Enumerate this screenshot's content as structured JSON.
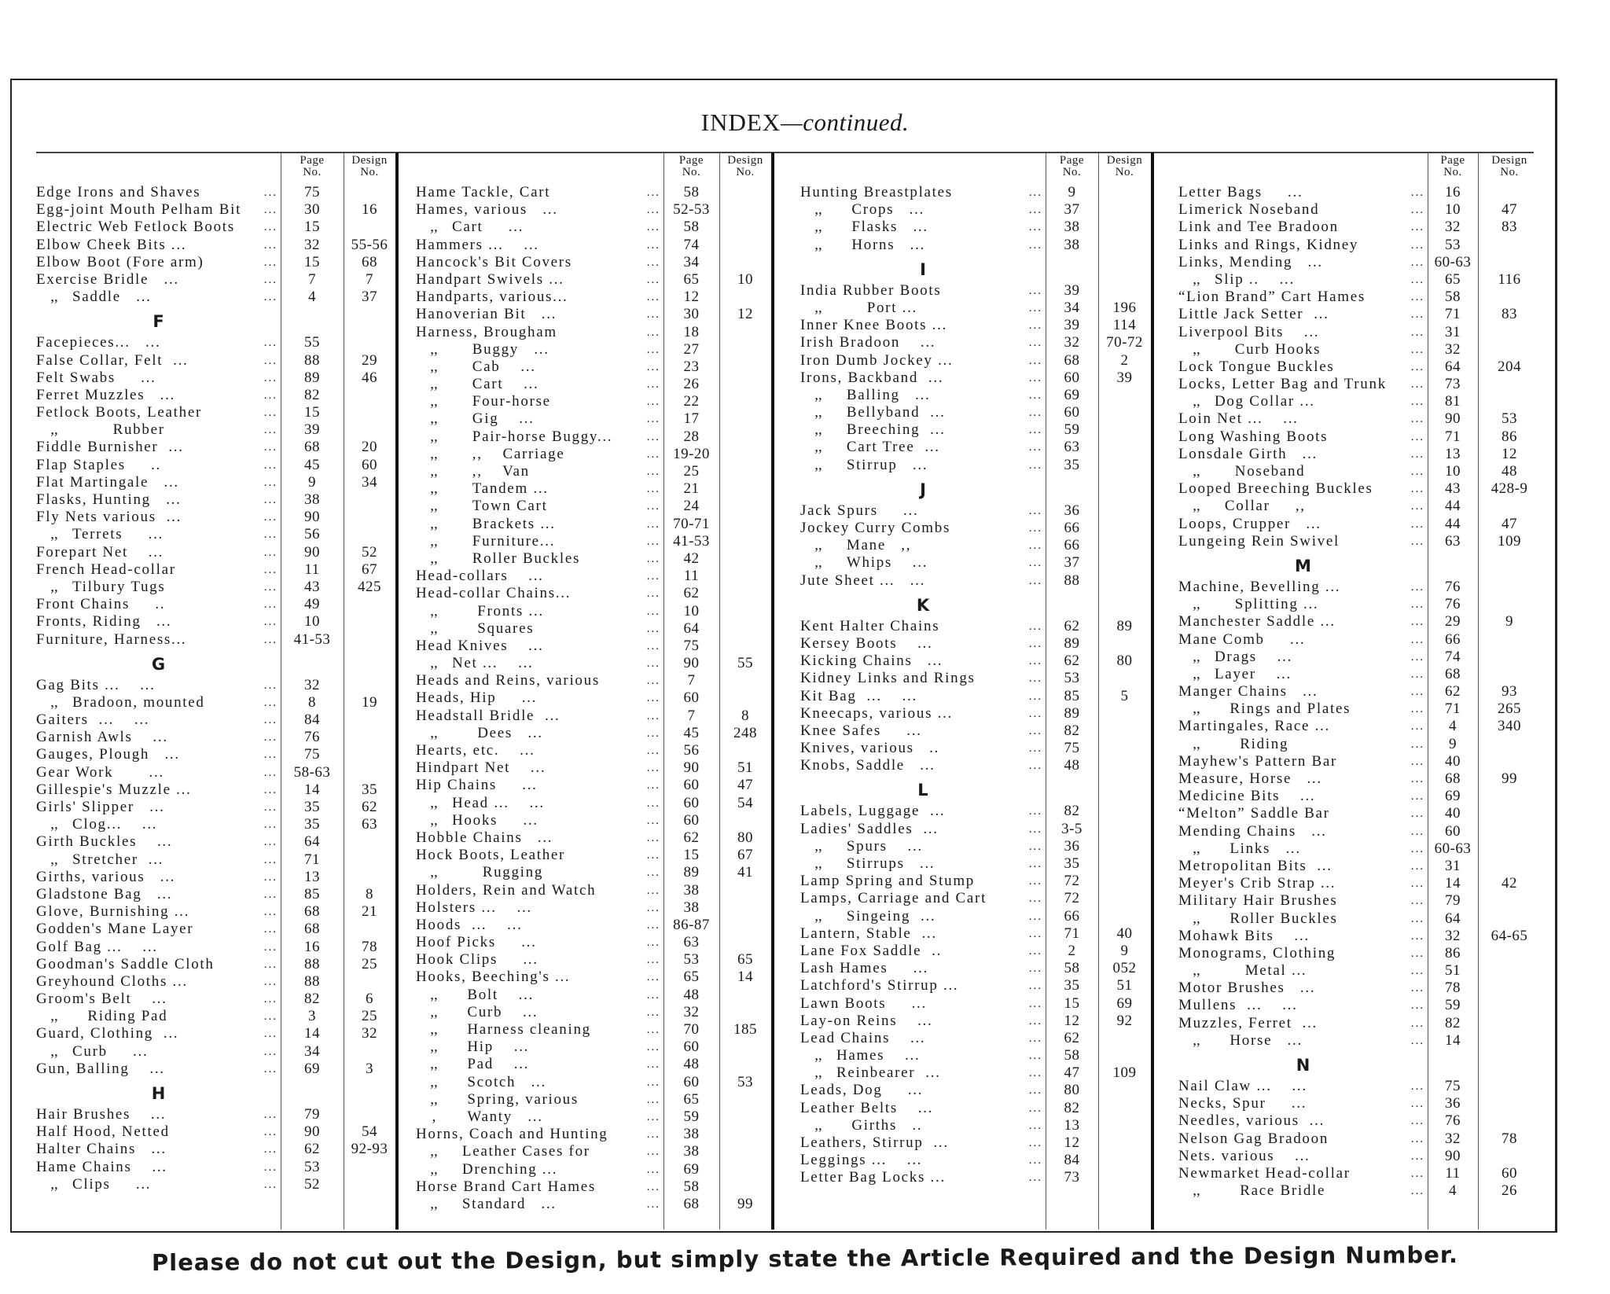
{
  "title": {
    "main": "INDEX",
    "suffix": "—continued."
  },
  "column_headers": {
    "page": "Page No.",
    "design": "Design No."
  },
  "footer": "Please do not cut out the Design, but simply state the Article Required and the Design Number.",
  "columns": [
    [
      [
        "Edge Irons and Shaves",
        "75",
        ""
      ],
      [
        "Egg-joint Mouth Pelham Bit",
        "30",
        "16"
      ],
      [
        "Electric Web Fetlock Boots",
        "15",
        ""
      ],
      [
        "Elbow Cheek Bits ...",
        "32",
        "55-56"
      ],
      [
        "Elbow Boot (Fore arm)",
        "15",
        "68"
      ],
      [
        "Exercise Bridle   ...",
        "7",
        "7"
      ],
      [
        ",,|Saddle   ...",
        "4",
        "37"
      ],
      "F",
      [
        "Facepieces...   ...",
        "55",
        ""
      ],
      [
        "False Collar, Felt  ...",
        "88",
        "29"
      ],
      [
        "Felt Swabs     ...",
        "89",
        "46"
      ],
      [
        "Ferret Muzzles   ...",
        "82",
        ""
      ],
      [
        "Fetlock Boots, Leather",
        "15",
        ""
      ],
      [
        ",,|        Rubber",
        "39",
        ""
      ],
      [
        "Fiddle Burnisher  ...",
        "68",
        "20"
      ],
      [
        "Flap Staples     ..",
        "45",
        "60"
      ],
      [
        "Flat Martingale   ...",
        "9",
        "34"
      ],
      [
        "Flasks, Hunting   ...",
        "38",
        ""
      ],
      [
        "Fly Nets various  ...",
        "90",
        ""
      ],
      [
        ",,|Terrets     ...",
        "56",
        ""
      ],
      [
        "Forepart Net    ...",
        "90",
        "52"
      ],
      [
        "French Head-collar",
        "11",
        "67"
      ],
      [
        ",,|Tilbury Tugs",
        "43",
        "425"
      ],
      [
        "Front Chains     ..",
        "49",
        ""
      ],
      [
        "Fronts, Riding   ...",
        "10",
        ""
      ],
      [
        "Furniture, Harness...",
        "41-53",
        ""
      ],
      "G",
      [
        "Gag Bits ...    ...",
        "32",
        ""
      ],
      [
        ",,|Bradoon, mounted",
        "8",
        "19"
      ],
      [
        "Gaiters  ...    ...",
        "84",
        ""
      ],
      [
        "Garnish Awls    ...",
        "76",
        ""
      ],
      [
        "Gauges, Plough   ...",
        "75",
        ""
      ],
      [
        "Gear Work       ...",
        "58-63",
        ""
      ],
      [
        "Gillespie's Muzzle ...",
        "14",
        "35"
      ],
      [
        "Girls' Slipper   ...",
        "35",
        "62"
      ],
      [
        ",,|Clog...    ...",
        "35",
        "63"
      ],
      [
        "Girth Buckles    ...",
        "64",
        ""
      ],
      [
        ",,|Stretcher  ...",
        "71",
        ""
      ],
      [
        "Girths, various   ...",
        "13",
        ""
      ],
      [
        "Gladstone Bag   ...",
        "85",
        "8"
      ],
      [
        "Glove, Burnishing ...",
        "68",
        "21"
      ],
      [
        "Godden's Mane Layer",
        "68",
        ""
      ],
      [
        "Golf Bag ...    ...",
        "16",
        "78"
      ],
      [
        "Goodman's Saddle Cloth",
        "88",
        "25"
      ],
      [
        "Greyhound Cloths ...",
        "88",
        ""
      ],
      [
        "Groom's Belt    ...",
        "82",
        "6"
      ],
      [
        ",,|   Riding Pad",
        "3",
        "25"
      ],
      [
        "Guard, Clothing  ...",
        "14",
        "32"
      ],
      [
        ",,|Curb     ...",
        "34",
        ""
      ],
      [
        "Gun, Balling    ...",
        "69",
        "3"
      ],
      "H",
      [
        "Hair Brushes    ...",
        "79",
        ""
      ],
      [
        "Half Hood, Netted",
        "90",
        "54"
      ],
      [
        "Halter Chains   ...",
        "62",
        "92-93"
      ],
      [
        "Hame Chains    ...",
        "53",
        ""
      ],
      [
        ",,|Clips     ...",
        "52",
        ""
      ]
    ],
    [
      [
        "Hame Tackle, Cart",
        "58",
        ""
      ],
      [
        "Hames, various   ...",
        "52-53",
        ""
      ],
      [
        ",,|Cart     ...",
        "58",
        ""
      ],
      [
        "Hammers ...    ...",
        "74",
        ""
      ],
      [
        "Hancock's Bit Covers",
        "34",
        ""
      ],
      [
        "Handpart Swivels ...",
        "65",
        "10"
      ],
      [
        "Handparts, various...",
        "12",
        ""
      ],
      [
        "Hanoverian Bit   ...",
        "30",
        "12"
      ],
      [
        "Harness, Brougham",
        "18",
        ""
      ],
      [
        ",,|    Buggy   ...",
        "27",
        ""
      ],
      [
        ",,|    Cab    ...",
        "23",
        ""
      ],
      [
        ",,|    Cart    ...",
        "26",
        ""
      ],
      [
        ",,|    Four-horse",
        "22",
        ""
      ],
      [
        ",,|    Gig    ...",
        "17",
        ""
      ],
      [
        ",,|    Pair-horse Buggy...",
        "28",
        ""
      ],
      [
        ",,|    ,,    Carriage",
        "19-20",
        ""
      ],
      [
        ",,|    ,,    Van",
        "25",
        ""
      ],
      [
        ",,|    Tandem ...",
        "21",
        ""
      ],
      [
        ",,|    Town Cart",
        "24",
        ""
      ],
      [
        ",,|    Brackets ...",
        "70-71",
        ""
      ],
      [
        ",,|    Furniture...",
        "41-53",
        ""
      ],
      [
        ",,|    Roller Buckles",
        "42",
        ""
      ],
      [
        "Head-collars    ...",
        "11",
        ""
      ],
      [
        "Head-collar Chains...",
        "62",
        ""
      ],
      [
        ",,|     Fronts ...",
        "10",
        ""
      ],
      [
        ",,|     Squares",
        "64",
        ""
      ],
      [
        "Head Knives    ...",
        "75",
        ""
      ],
      [
        ",,|Net ...    ...",
        "90",
        "55"
      ],
      [
        "Heads and Reins, various",
        "7",
        ""
      ],
      [
        "Heads, Hip     ...",
        "60",
        ""
      ],
      [
        "Headstall Bridle  ...",
        "7",
        "8"
      ],
      [
        ",,|     Dees   ...",
        "45",
        "248"
      ],
      [
        "Hearts, etc.    ...",
        "56",
        ""
      ],
      [
        "Hindpart Net    ...",
        "90",
        "51"
      ],
      [
        "Hip Chains     ...",
        "60",
        "47"
      ],
      [
        ",,|Head ...    ...",
        "60",
        "54"
      ],
      [
        ",,|Hooks     ...",
        "60",
        ""
      ],
      [
        "Hobble Chains   ...",
        "62",
        "80"
      ],
      [
        "Hock Boots, Leather",
        "15",
        "67"
      ],
      [
        ",,|      Rugging",
        "89",
        "41"
      ],
      [
        "Holders, Rein and Watch",
        "38",
        ""
      ],
      [
        "Holsters ...    ...",
        "38",
        ""
      ],
      [
        "Hoods  ...    ...",
        "86-87",
        ""
      ],
      [
        "Hoof Picks     ...",
        "63",
        ""
      ],
      [
        "Hook Clips     ...",
        "53",
        "65"
      ],
      [
        "Hooks, Beeching's ...",
        "65",
        "14"
      ],
      [
        ",,|   Bolt    ...",
        "48",
        ""
      ],
      [
        ",,|   Curb    ...",
        "32",
        ""
      ],
      [
        ",,|   Harness cleaning",
        "70",
        "185"
      ],
      [
        ",,|   Hip    ...",
        "60",
        ""
      ],
      [
        ",,|   Pad    ...",
        "48",
        ""
      ],
      [
        ",,|   Scotch   ...",
        "60",
        "53"
      ],
      [
        ",,|   Spring, various",
        "65",
        ""
      ],
      [
        ",|   Wanty   ...",
        "59",
        ""
      ],
      [
        "Horns, Coach and Hunting",
        "38",
        ""
      ],
      [
        ",,|  Leather Cases for",
        "38",
        ""
      ],
      [
        ",,|  Drenching ...",
        "69",
        ""
      ],
      [
        "Horse Brand Cart Hames",
        "58",
        ""
      ],
      [
        ",,|  Standard   ...",
        "68",
        "99"
      ]
    ],
    [
      [
        "Hunting Breastplates",
        "9",
        ""
      ],
      [
        ",,|   Crops   ...",
        "37",
        ""
      ],
      [
        ",,|   Flasks   ...",
        "38",
        ""
      ],
      [
        ",,|   Horns   ...",
        "38",
        ""
      ],
      "I",
      [
        "India Rubber Boots",
        "39",
        ""
      ],
      [
        ",,|      Port ...",
        "34",
        "196"
      ],
      [
        "Inner Knee Boots ...",
        "39",
        "114"
      ],
      [
        "Irish Bradoon    ...",
        "32",
        "70-72"
      ],
      [
        "Iron Dumb Jockey ...",
        "68",
        "2"
      ],
      [
        "Irons, Backband  ...",
        "60",
        "39"
      ],
      [
        ",,|  Balling   ...",
        "69",
        ""
      ],
      [
        ",,|  Bellyband  ...",
        "60",
        ""
      ],
      [
        ",,|  Breeching  ...",
        "59",
        ""
      ],
      [
        ",,|  Cart Tree  ...",
        "63",
        ""
      ],
      [
        ",,|  Stirrup   ...",
        "35",
        ""
      ],
      "J",
      [
        "Jack Spurs     ...",
        "36",
        ""
      ],
      [
        "Jockey Curry Combs",
        "66",
        ""
      ],
      [
        ",,|  Mane   ,,",
        "66",
        ""
      ],
      [
        ",,|  Whips    ...",
        "37",
        ""
      ],
      [
        "Jute Sheet ...   ...",
        "88",
        ""
      ],
      "K",
      [
        "Kent Halter Chains",
        "62",
        "89"
      ],
      [
        "Kersey Boots    ...",
        "89",
        ""
      ],
      [
        "Kicking Chains   ...",
        "62",
        "80"
      ],
      [
        "Kidney Links and Rings",
        "53",
        ""
      ],
      [
        "Kit Bag  ...    ...",
        "85",
        "5"
      ],
      [
        "Kneecaps, various ...",
        "89",
        ""
      ],
      [
        "Knee Safes     ...",
        "82",
        ""
      ],
      [
        "Knives, various   ..",
        "75",
        ""
      ],
      [
        "Knobs, Saddle   ...",
        "48",
        ""
      ],
      "L",
      [
        "Labels, Luggage  ...",
        "82",
        ""
      ],
      [
        "Ladies' Saddles  ...",
        "3-5",
        ""
      ],
      [
        ",,|  Spurs    ...",
        "36",
        ""
      ],
      [
        ",,|  Stirrups   ...",
        "35",
        ""
      ],
      [
        "Lamp Spring and Stump",
        "72",
        ""
      ],
      [
        "Lamps, Carriage and Cart",
        "72",
        ""
      ],
      [
        ",,|  Singeing  ...",
        "66",
        ""
      ],
      [
        "Lantern, Stable  ...",
        "71",
        "40"
      ],
      [
        "Lane Fox Saddle  ..",
        "2",
        "9"
      ],
      [
        "Lash Hames     ...",
        "58",
        "052"
      ],
      [
        "Latchford's Stirrup ...",
        "35",
        "51"
      ],
      [
        "Lawn Boots     ...",
        "15",
        "69"
      ],
      [
        "Lay-on Reins    ...",
        "12",
        "92"
      ],
      [
        "Lead Chains    ...",
        "62",
        ""
      ],
      [
        ",,|Hames    ...",
        "58",
        ""
      ],
      [
        ",,|Reinbearer  ...",
        "47",
        "109"
      ],
      [
        "Leads, Dog     ...",
        "80",
        ""
      ],
      [
        "Leather Belts    ...",
        "82",
        ""
      ],
      [
        ",,|   Girths   ..",
        "13",
        ""
      ],
      [
        "Leathers, Stirrup  ...",
        "12",
        ""
      ],
      [
        "Leggings ...    ...",
        "84",
        ""
      ],
      [
        "Letter Bag Locks ...",
        "73",
        ""
      ]
    ],
    [
      [
        "Letter Bags     ...",
        "16",
        ""
      ],
      [
        "Limerick Noseband",
        "10",
        "47"
      ],
      [
        "Link and Tee Bradoon",
        "32",
        "83"
      ],
      [
        "Links and Rings, Kidney",
        "53",
        ""
      ],
      [
        "Links, Mending   ...",
        "60-63",
        ""
      ],
      [
        ",,|Slip ..    ...",
        "65",
        "116"
      ],
      [
        "“Lion Brand” Cart Hames",
        "58",
        ""
      ],
      [
        "Little Jack Setter  ...",
        "71",
        "83"
      ],
      [
        "Liverpool Bits    ...",
        "31",
        ""
      ],
      [
        ",,|    Curb Hooks",
        "32",
        ""
      ],
      [
        "Lock Tongue Buckles",
        "64",
        "204"
      ],
      [
        "Locks, Letter Bag and Trunk",
        "73",
        ""
      ],
      [
        ",,|Dog Collar ...",
        "81",
        ""
      ],
      [
        "Loin Net ...    ...",
        "90",
        "53"
      ],
      [
        "Long Washing Boots",
        "71",
        "86"
      ],
      [
        "Lonsdale Girth   ...",
        "13",
        "12"
      ],
      [
        ",,|    Noseband",
        "10",
        "48"
      ],
      [
        "Looped Breeching Buckles",
        "43",
        "428-9"
      ],
      [
        ",,|  Collar     ,,",
        "44",
        ""
      ],
      [
        "Loops, Crupper   ...",
        "44",
        "47"
      ],
      [
        "Lungeing Rein Swivel",
        "63",
        "109"
      ],
      "M",
      [
        "Machine, Bevelling ...",
        "76",
        ""
      ],
      [
        ",,|    Splitting ...",
        "76",
        ""
      ],
      [
        "Manchester Saddle ...",
        "29",
        "9"
      ],
      [
        "Mane Comb     ...",
        "66",
        ""
      ],
      [
        ",,|Drags    ...",
        "74",
        ""
      ],
      [
        ",,|Layer    ...",
        "68",
        ""
      ],
      [
        "Manger Chains   ...",
        "62",
        "93"
      ],
      [
        ",,|   Rings and Plates",
        "71",
        "265"
      ],
      [
        "Martingales, Race ...",
        "4",
        "340"
      ],
      [
        ",,|     Riding",
        "9",
        ""
      ],
      [
        "Mayhew's Pattern Bar",
        "40",
        ""
      ],
      [
        "Measure, Horse   ...",
        "68",
        "99"
      ],
      [
        "Medicine Bits    ...",
        "69",
        ""
      ],
      [
        "“Melton” Saddle Bar",
        "40",
        ""
      ],
      [
        "Mending Chains   ...",
        "60",
        ""
      ],
      [
        ",,|   Links   ...",
        "60-63",
        ""
      ],
      [
        "Metropolitan Bits  ...",
        "31",
        ""
      ],
      [
        "Meyer's Crib Strap ...",
        "14",
        "42"
      ],
      [
        "Military Hair Brushes",
        "79",
        ""
      ],
      [
        ",,|   Roller Buckles",
        "64",
        ""
      ],
      [
        "Mohawk Bits    ...",
        "32",
        "64-65"
      ],
      [
        "Monograms, Clothing",
        "86",
        ""
      ],
      [
        ",,|      Metal ...",
        "51",
        ""
      ],
      [
        "Motor Brushes   ...",
        "78",
        ""
      ],
      [
        "Mullens  ...    ...",
        "59",
        ""
      ],
      [
        "Muzzles, Ferret  ...",
        "82",
        ""
      ],
      [
        ",,|   Horse   ...",
        "14",
        ""
      ],
      "N",
      [
        "Nail Claw ...    ...",
        "75",
        ""
      ],
      [
        "Necks, Spur     ...",
        "36",
        ""
      ],
      [
        "Needles, various  ...",
        "76",
        ""
      ],
      [
        "Nelson Gag Bradoon",
        "32",
        "78"
      ],
      [
        "Nets. various    ...",
        "90",
        ""
      ],
      [
        "Newmarket Head-collar",
        "11",
        "60"
      ],
      [
        ",,|     Race Bridle",
        "4",
        "26"
      ]
    ]
  ]
}
